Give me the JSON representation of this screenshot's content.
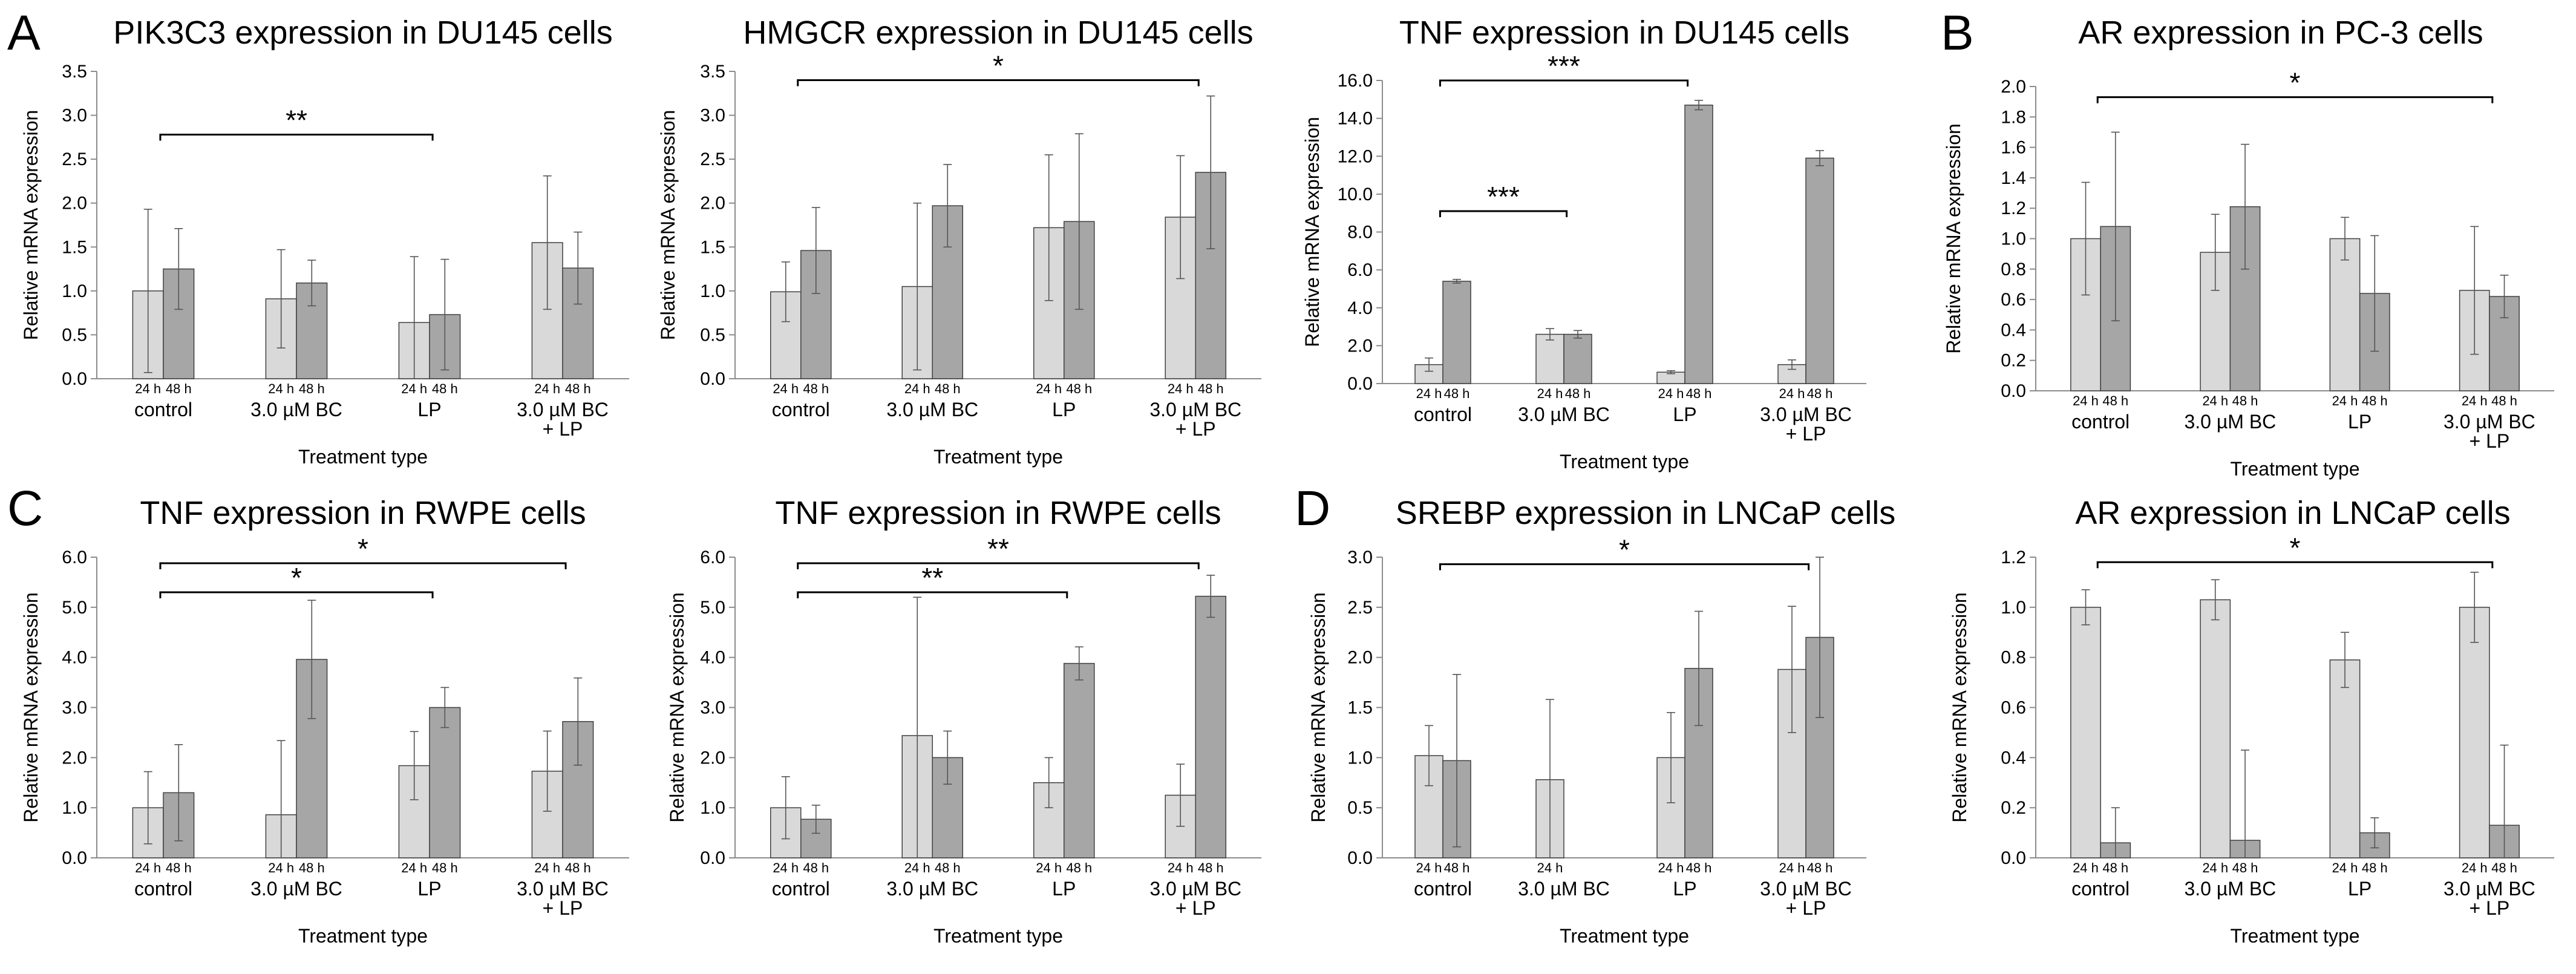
{
  "panel_letters": [
    "A",
    "B",
    "C",
    "D"
  ],
  "colors": {
    "bar_24h": "#d9d9d9",
    "bar_48h": "#a6a6a6",
    "axis": "#8c8c8c",
    "bar_stroke": "#404040"
  },
  "chart_data": [
    {
      "type": "bar",
      "title": "PIK3C3 expression in DU145 cells",
      "ylabel": "Relative mRNA expression",
      "xlabel": "Treatment type",
      "ylim": [
        0,
        3.5
      ],
      "yticks": [
        "0.0",
        "0.5",
        "1.0",
        "1.5",
        "2.0",
        "2.5",
        "3.0",
        "3.5"
      ],
      "categories": [
        [
          "control"
        ],
        [
          "3.0 µM BC"
        ],
        [
          "LP"
        ],
        [
          "3.0 µM BC",
          "+ LP"
        ]
      ],
      "series": [
        {
          "name": "24 h",
          "values": [
            1.0,
            0.91,
            0.64,
            1.55
          ],
          "errors": [
            0.93,
            0.56,
            0.75,
            0.76
          ]
        },
        {
          "name": "48 h",
          "values": [
            1.25,
            1.09,
            0.73,
            1.26
          ],
          "errors": [
            0.46,
            0.26,
            0.63,
            0.41
          ]
        }
      ],
      "brackets": [
        {
          "from": 0,
          "to": 2,
          "y": 2.78,
          "label": "**"
        }
      ]
    },
    {
      "type": "bar",
      "title": "HMGCR expression in DU145 cells",
      "ylabel": "Relative mRNA expression",
      "xlabel": "Treatment type",
      "ylim": [
        0,
        3.5
      ],
      "yticks": [
        "0.0",
        "0.5",
        "1.0",
        "1.5",
        "2.0",
        "2.5",
        "3.0",
        "3.5"
      ],
      "categories": [
        [
          "control"
        ],
        [
          "3.0 µM BC"
        ],
        [
          "LP"
        ],
        [
          "3.0 µM BC",
          "+ LP"
        ]
      ],
      "series": [
        {
          "name": "24 h",
          "values": [
            0.99,
            1.05,
            1.72,
            1.84
          ],
          "errors": [
            0.34,
            0.95,
            0.83,
            0.7
          ]
        },
        {
          "name": "48 h",
          "values": [
            1.46,
            1.97,
            1.79,
            2.35
          ],
          "errors": [
            0.49,
            0.47,
            1.0,
            0.87
          ]
        }
      ],
      "brackets": [
        {
          "from": 0,
          "to": 3,
          "y": 3.4,
          "label": "*"
        }
      ]
    },
    {
      "type": "bar",
      "title": "TNF expression in DU145 cells",
      "ylabel": "Relative mRNA expression",
      "xlabel": "Treatment type",
      "ylim": [
        0,
        16
      ],
      "yticks": [
        "0.0",
        "2.0",
        "4.0",
        "6.0",
        "8.0",
        "10.0",
        "12.0",
        "14.0",
        "16.0"
      ],
      "categories": [
        [
          "control"
        ],
        [
          "3.0 µM BC"
        ],
        [
          "LP"
        ],
        [
          "3.0 µM BC",
          "+ LP"
        ]
      ],
      "series": [
        {
          "name": "24 h",
          "values": [
            1.0,
            2.6,
            0.6,
            1.0
          ],
          "errors": [
            0.35,
            0.3,
            0.08,
            0.25
          ]
        },
        {
          "name": "48 h",
          "values": [
            5.4,
            2.6,
            14.7,
            11.9
          ],
          "errors": [
            0.1,
            0.2,
            0.25,
            0.4
          ]
        }
      ],
      "brackets": [
        {
          "from": 0,
          "to": 2,
          "y": 16.0,
          "label": "***"
        },
        {
          "from": 0,
          "to": 1,
          "y": 9.1,
          "label": "***"
        }
      ]
    },
    {
      "type": "bar",
      "title": "AR expression in PC-3 cells",
      "ylabel": "Relative mRNA expression",
      "xlabel": "Treatment type",
      "ylim": [
        0,
        2.0
      ],
      "yticks": [
        "0.0",
        "0.2",
        "0.4",
        "0.6",
        "0.8",
        "1.0",
        "1.2",
        "1.4",
        "1.6",
        "1.8",
        "2.0"
      ],
      "categories": [
        [
          "control"
        ],
        [
          "3.0 µM BC"
        ],
        [
          "LP"
        ],
        [
          "3.0 µM BC",
          "+ LP"
        ]
      ],
      "series": [
        {
          "name": "24 h",
          "values": [
            1.0,
            0.91,
            1.0,
            0.66
          ],
          "errors": [
            0.37,
            0.25,
            0.14,
            0.42
          ]
        },
        {
          "name": "48 h",
          "values": [
            1.08,
            1.21,
            0.64,
            0.62
          ],
          "errors": [
            0.62,
            0.41,
            0.38,
            0.14
          ]
        }
      ],
      "brackets": [
        {
          "from": 0,
          "to": 3,
          "y": 1.93,
          "label": "*"
        }
      ]
    },
    {
      "type": "bar",
      "title": "TNF expression in RWPE cells",
      "ylabel": "Relative mRNA expression",
      "xlabel": "Treatment type",
      "ylim": [
        0,
        6.0
      ],
      "yticks": [
        "0.0",
        "1.0",
        "2.0",
        "3.0",
        "4.0",
        "5.0",
        "6.0"
      ],
      "categories": [
        [
          "control"
        ],
        [
          "3.0 µM BC"
        ],
        [
          "LP"
        ],
        [
          "3.0 µM BC",
          "+ LP"
        ]
      ],
      "series": [
        {
          "name": "24 h",
          "values": [
            1.0,
            0.86,
            1.84,
            1.73
          ],
          "errors": [
            0.72,
            1.48,
            0.68,
            0.8
          ]
        },
        {
          "name": "48 h",
          "values": [
            1.3,
            3.96,
            3.0,
            2.72
          ],
          "errors": [
            0.96,
            1.18,
            0.4,
            0.87
          ]
        }
      ],
      "brackets": [
        {
          "from": 0,
          "to": 3,
          "y": 5.88,
          "label": "*"
        },
        {
          "from": 0,
          "to": 2,
          "y": 5.3,
          "label": "*"
        }
      ]
    },
    {
      "type": "bar",
      "title": "TNF expression in RWPE cells",
      "ylabel": "Relative mRNA expression",
      "xlabel": "Treatment type",
      "ylim": [
        0,
        6.0
      ],
      "yticks": [
        "0.0",
        "1.0",
        "2.0",
        "3.0",
        "4.0",
        "5.0",
        "6.0"
      ],
      "categories": [
        [
          "control"
        ],
        [
          "3.0 µM BC"
        ],
        [
          "LP"
        ],
        [
          "3.0 µM BC",
          "+ LP"
        ]
      ],
      "series": [
        {
          "name": "24 h",
          "values": [
            1.0,
            2.44,
            1.5,
            1.25
          ],
          "errors": [
            0.62,
            2.76,
            0.5,
            0.62
          ]
        },
        {
          "name": "48 h",
          "values": [
            0.77,
            2.0,
            3.88,
            5.22
          ],
          "errors": [
            0.28,
            0.53,
            0.33,
            0.42
          ]
        }
      ],
      "brackets": [
        {
          "from": 0,
          "to": 3,
          "y": 5.88,
          "label": "**"
        },
        {
          "from": 0,
          "to": 2,
          "y": 5.3,
          "label": "**"
        }
      ]
    },
    {
      "type": "bar",
      "title": "SREBP expression in LNCaP cells",
      "ylabel": "Relative mRNA expression",
      "xlabel": "Treatment type",
      "ylim": [
        0,
        3.0
      ],
      "yticks": [
        "0.0",
        "0.5",
        "1.0",
        "1.5",
        "2.0",
        "2.5",
        "3.0"
      ],
      "categories": [
        [
          "control"
        ],
        [
          "3.0 µM BC"
        ],
        [
          "LP"
        ],
        [
          "3.0 µM BC",
          "+ LP"
        ]
      ],
      "time_labels_override": [
        null,
        [
          "24 h"
        ],
        null,
        null
      ],
      "series": [
        {
          "name": "24 h",
          "values": [
            1.02,
            0.78,
            1.0,
            1.88
          ],
          "errors": [
            0.3,
            0.8,
            0.45,
            0.63
          ]
        },
        {
          "name": "48 h",
          "values": [
            0.97,
            null,
            1.89,
            2.2
          ],
          "errors": [
            0.86,
            null,
            0.57,
            0.8
          ]
        }
      ],
      "brackets": [
        {
          "from": 0,
          "to": 3,
          "y": 2.93,
          "label": "*"
        }
      ]
    },
    {
      "type": "bar",
      "title": "AR expression in LNCaP cells",
      "ylabel": "Relative mRNA expression",
      "xlabel": "Treatment type",
      "ylim": [
        0,
        1.2
      ],
      "yticks": [
        "0.0",
        "0.2",
        "0.4",
        "0.6",
        "0.8",
        "1.0",
        "1.2"
      ],
      "categories": [
        [
          "control"
        ],
        [
          "3.0 µM BC"
        ],
        [
          "LP"
        ],
        [
          "3.0 µM BC",
          "+ LP"
        ]
      ],
      "series": [
        {
          "name": "24 h",
          "values": [
            1.0,
            1.03,
            0.79,
            1.0
          ],
          "errors": [
            0.07,
            0.08,
            0.11,
            0.14
          ]
        },
        {
          "name": "48 h",
          "values": [
            0.06,
            0.07,
            0.1,
            0.13
          ],
          "errors": [
            0.14,
            0.36,
            0.06,
            0.32
          ]
        }
      ],
      "brackets": [
        {
          "from": 0,
          "to": 3,
          "y": 1.18,
          "label": "*"
        }
      ]
    }
  ]
}
